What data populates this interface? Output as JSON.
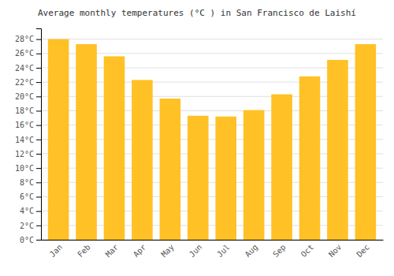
{
  "chart_data": {
    "type": "bar",
    "title": "Average monthly temperatures (°C ) in San Francisco de Laishí",
    "categories": [
      "Jan",
      "Feb",
      "Mar",
      "Apr",
      "May",
      "Jun",
      "Jul",
      "Aug",
      "Sep",
      "Oct",
      "Nov",
      "Dec"
    ],
    "values": [
      28.0,
      27.3,
      25.6,
      22.3,
      19.7,
      17.3,
      17.2,
      18.1,
      20.3,
      22.8,
      25.1,
      27.3
    ],
    "color": "#FFC125",
    "ylim": [
      0,
      29.5
    ],
    "yticks": [
      {
        "value": 0,
        "label": "0°C"
      },
      {
        "value": 2,
        "label": "2°C"
      },
      {
        "value": 4,
        "label": "4°C"
      },
      {
        "value": 6,
        "label": "6°C"
      },
      {
        "value": 8,
        "label": "8°C"
      },
      {
        "value": 10,
        "label": "10°C"
      },
      {
        "value": 12,
        "label": "12°C"
      },
      {
        "value": 14,
        "label": "14°C"
      },
      {
        "value": 16,
        "label": "16°C"
      },
      {
        "value": 18,
        "label": "18°C"
      },
      {
        "value": 20,
        "label": "20°C"
      },
      {
        "value": 22,
        "label": "22°C"
      },
      {
        "value": 24,
        "label": "24°C"
      },
      {
        "value": 26,
        "label": "26°C"
      },
      {
        "value": 28,
        "label": "28°C"
      }
    ],
    "grid": true
  }
}
